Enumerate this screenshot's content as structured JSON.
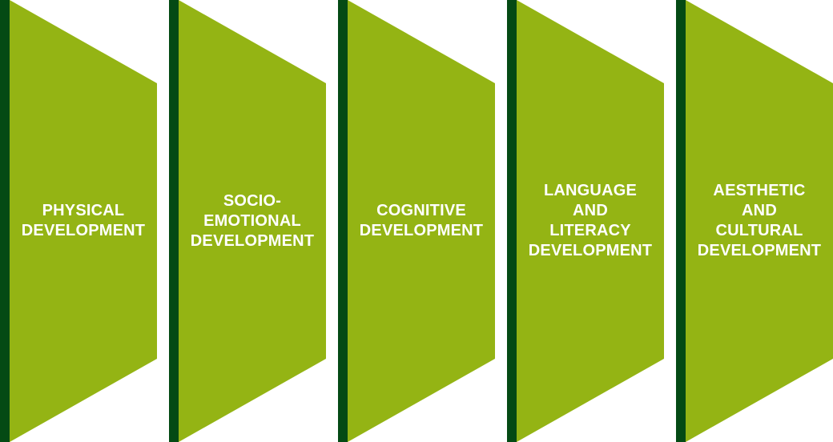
{
  "colors": {
    "panel_fill": "#94b414",
    "panel_edge": "#044a14",
    "label_text": "#ffffff"
  },
  "panels": [
    {
      "lines": [
        "PHYSICAL",
        "DEVELOPMENT"
      ]
    },
    {
      "lines": [
        "SOCIO-",
        "EMOTIONAL",
        "DEVELOPMENT"
      ]
    },
    {
      "lines": [
        "COGNITIVE",
        "DEVELOPMENT"
      ]
    },
    {
      "lines": [
        "LANGUAGE",
        "AND",
        "LITERACY",
        "DEVELOPMENT"
      ]
    },
    {
      "lines": [
        "AESTHETIC",
        "AND",
        "CULTURAL",
        "DEVELOPMENT"
      ]
    }
  ]
}
